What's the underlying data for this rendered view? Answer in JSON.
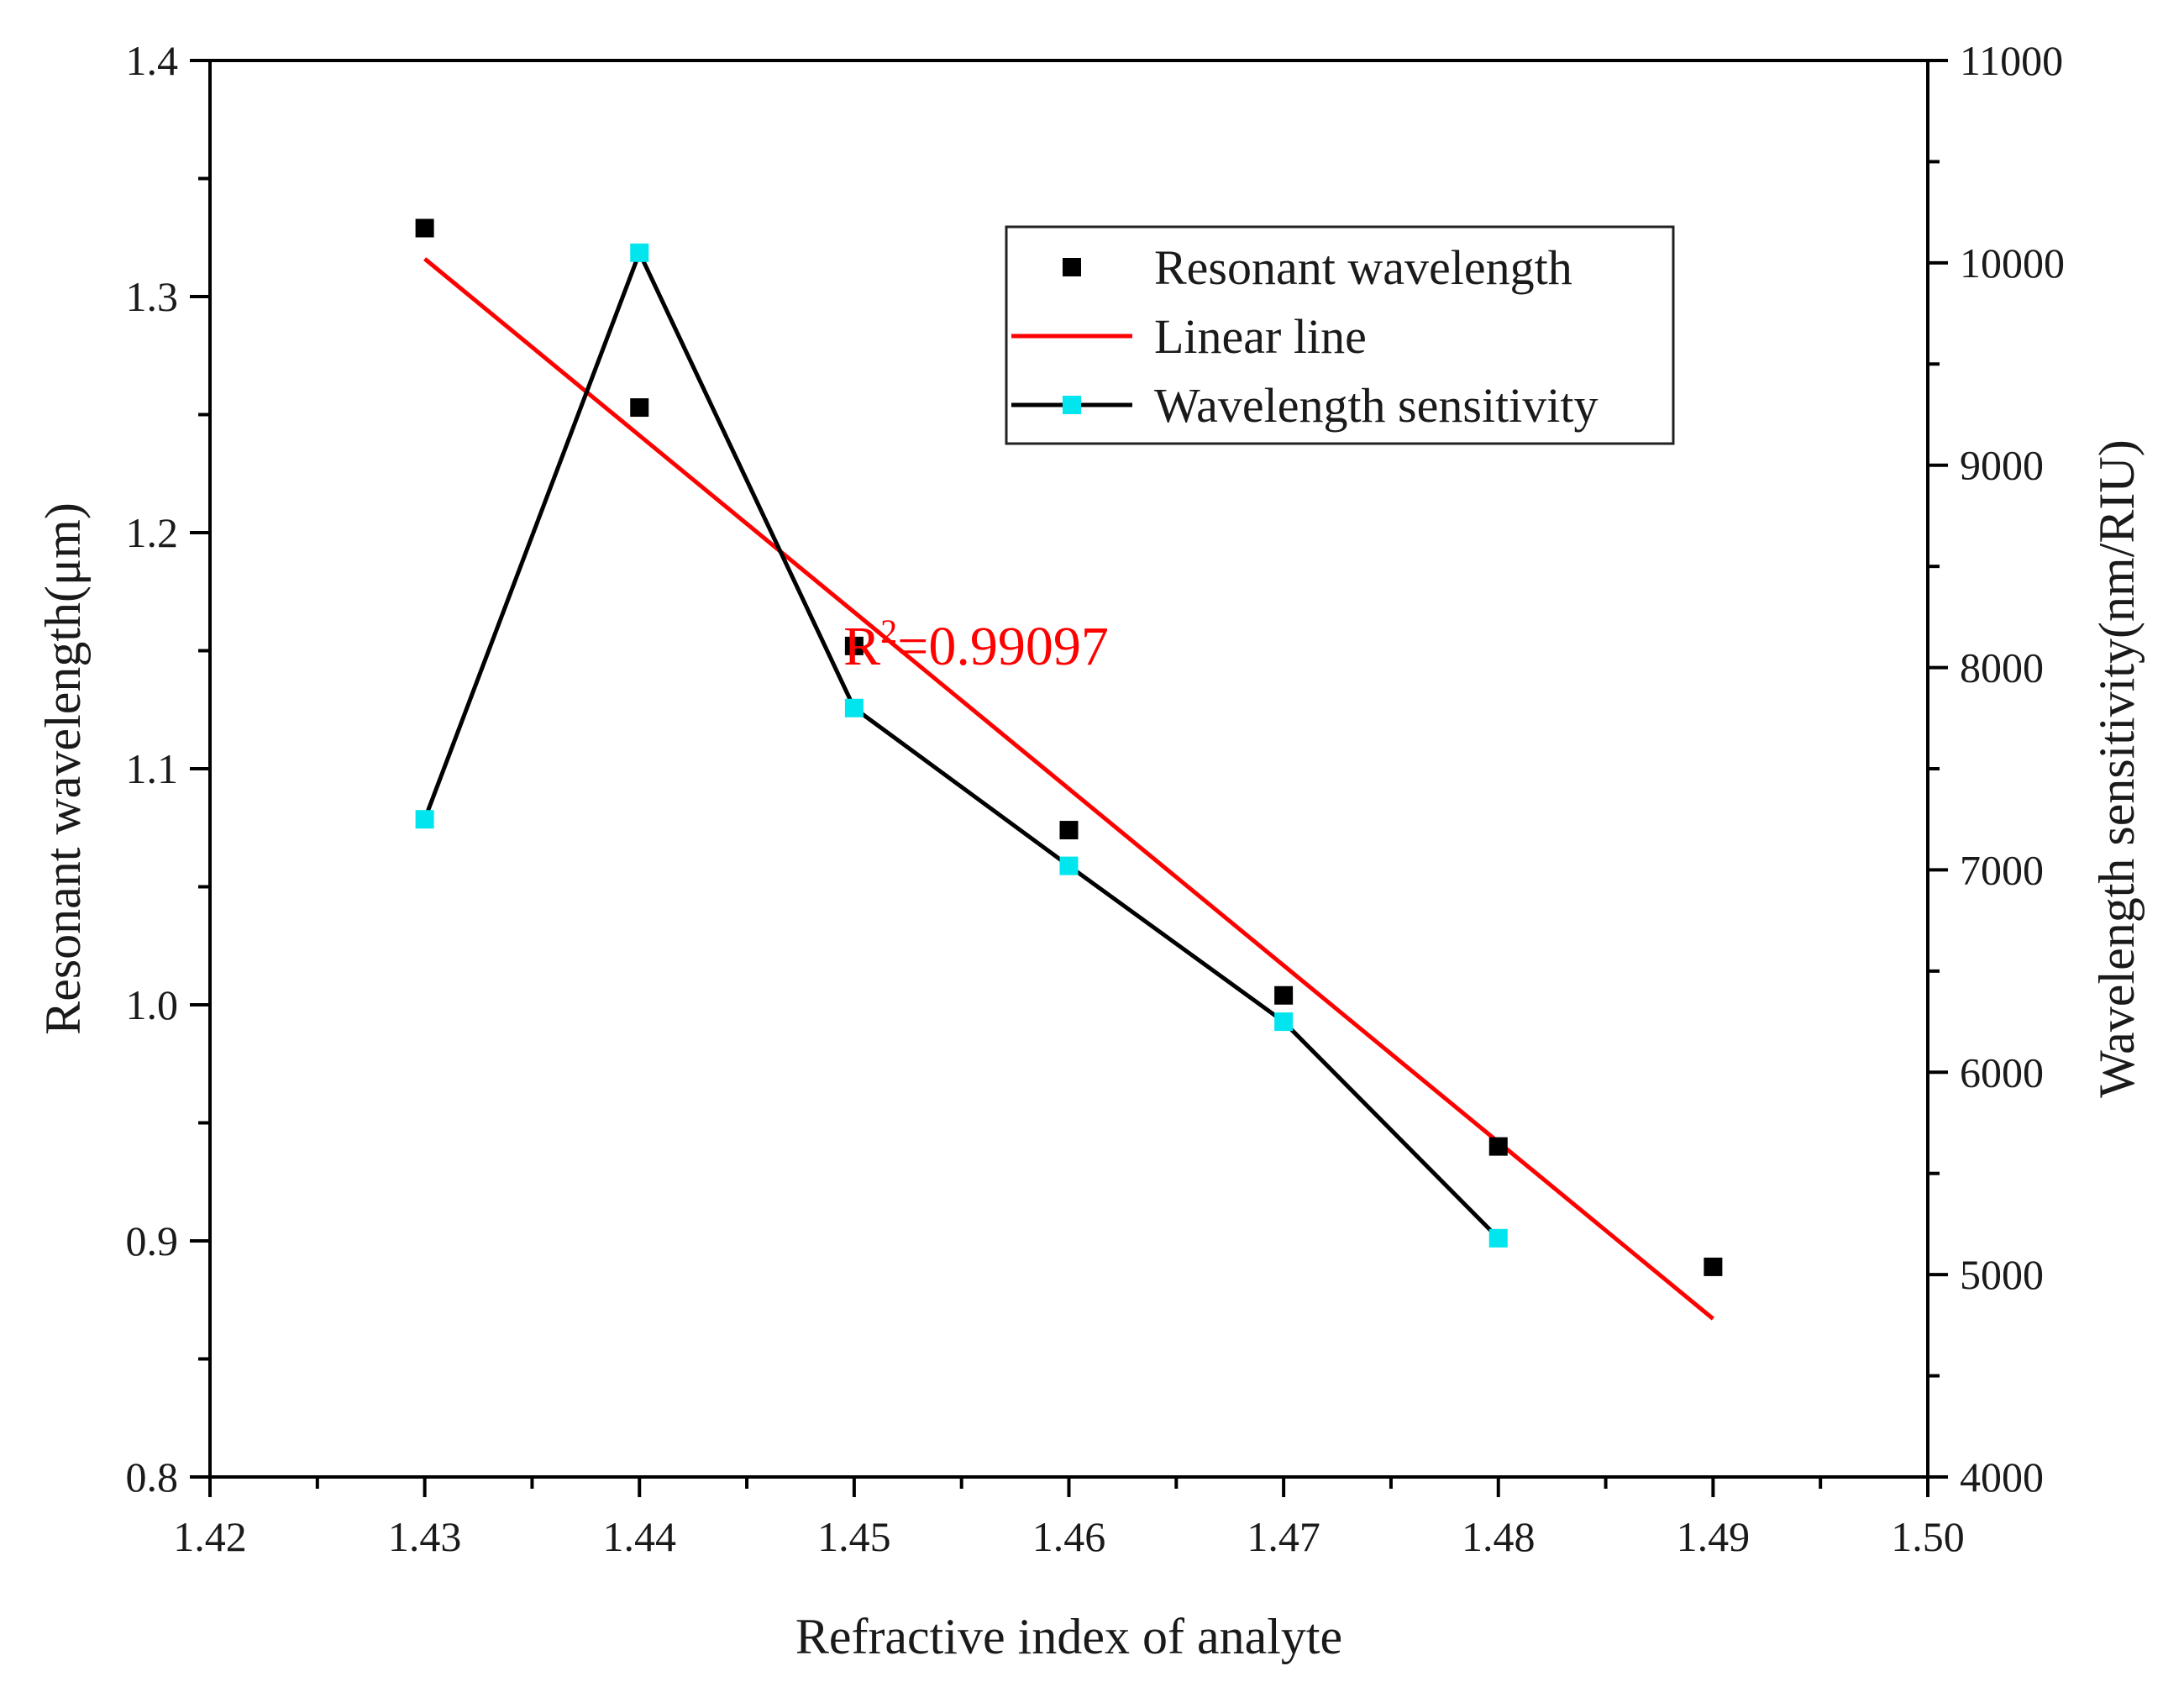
{
  "chart_data": {
    "type": "scatter",
    "title": "",
    "xlabel": "Refractive index of analyte",
    "ylabel_left": "Resonant wavelength(μm)",
    "ylabel_right": "Wavelength sensitivity(nm/RIU)",
    "xlim": [
      1.42,
      1.5
    ],
    "ylim_left": [
      0.8,
      1.4
    ],
    "ylim_right": [
      4000,
      11000
    ],
    "x_ticks": [
      "1.42",
      "1.43",
      "1.44",
      "1.45",
      "1.46",
      "1.47",
      "1.48",
      "1.49",
      "1.50"
    ],
    "y_left_ticks": [
      "0.8",
      "0.9",
      "1.0",
      "1.1",
      "1.2",
      "1.3",
      "1.4"
    ],
    "y_right_ticks": [
      "4000",
      "5000",
      "6000",
      "7000",
      "8000",
      "9000",
      "10000",
      "11000"
    ],
    "grid": false,
    "legend_position": "top-right",
    "series": [
      {
        "name": "Resonant wavelength",
        "axis": "left",
        "style": "markers",
        "color": "#000000",
        "x": [
          1.43,
          1.44,
          1.45,
          1.46,
          1.47,
          1.48,
          1.49
        ],
        "y": [
          1.329,
          1.253,
          1.152,
          1.074,
          1.004,
          0.94,
          0.889
        ]
      },
      {
        "name": "Linear line",
        "axis": "left",
        "style": "line",
        "color": "#ff0000",
        "x": [
          1.43,
          1.49
        ],
        "y": [
          1.316,
          0.867
        ]
      },
      {
        "name": "Wavelength sensitivity",
        "axis": "right",
        "style": "line+markers",
        "color": "#000000",
        "marker_color": "#00e5ee",
        "x": [
          1.43,
          1.44,
          1.45,
          1.46,
          1.47,
          1.48
        ],
        "y": [
          7250,
          10050,
          7800,
          7020,
          6250,
          5180
        ]
      }
    ],
    "annotations": [
      {
        "base": "R",
        "sup": "2",
        "rest": "=0.99097",
        "color": "#ff0000",
        "x": 1.4495,
        "y_left": 1.152
      }
    ]
  }
}
